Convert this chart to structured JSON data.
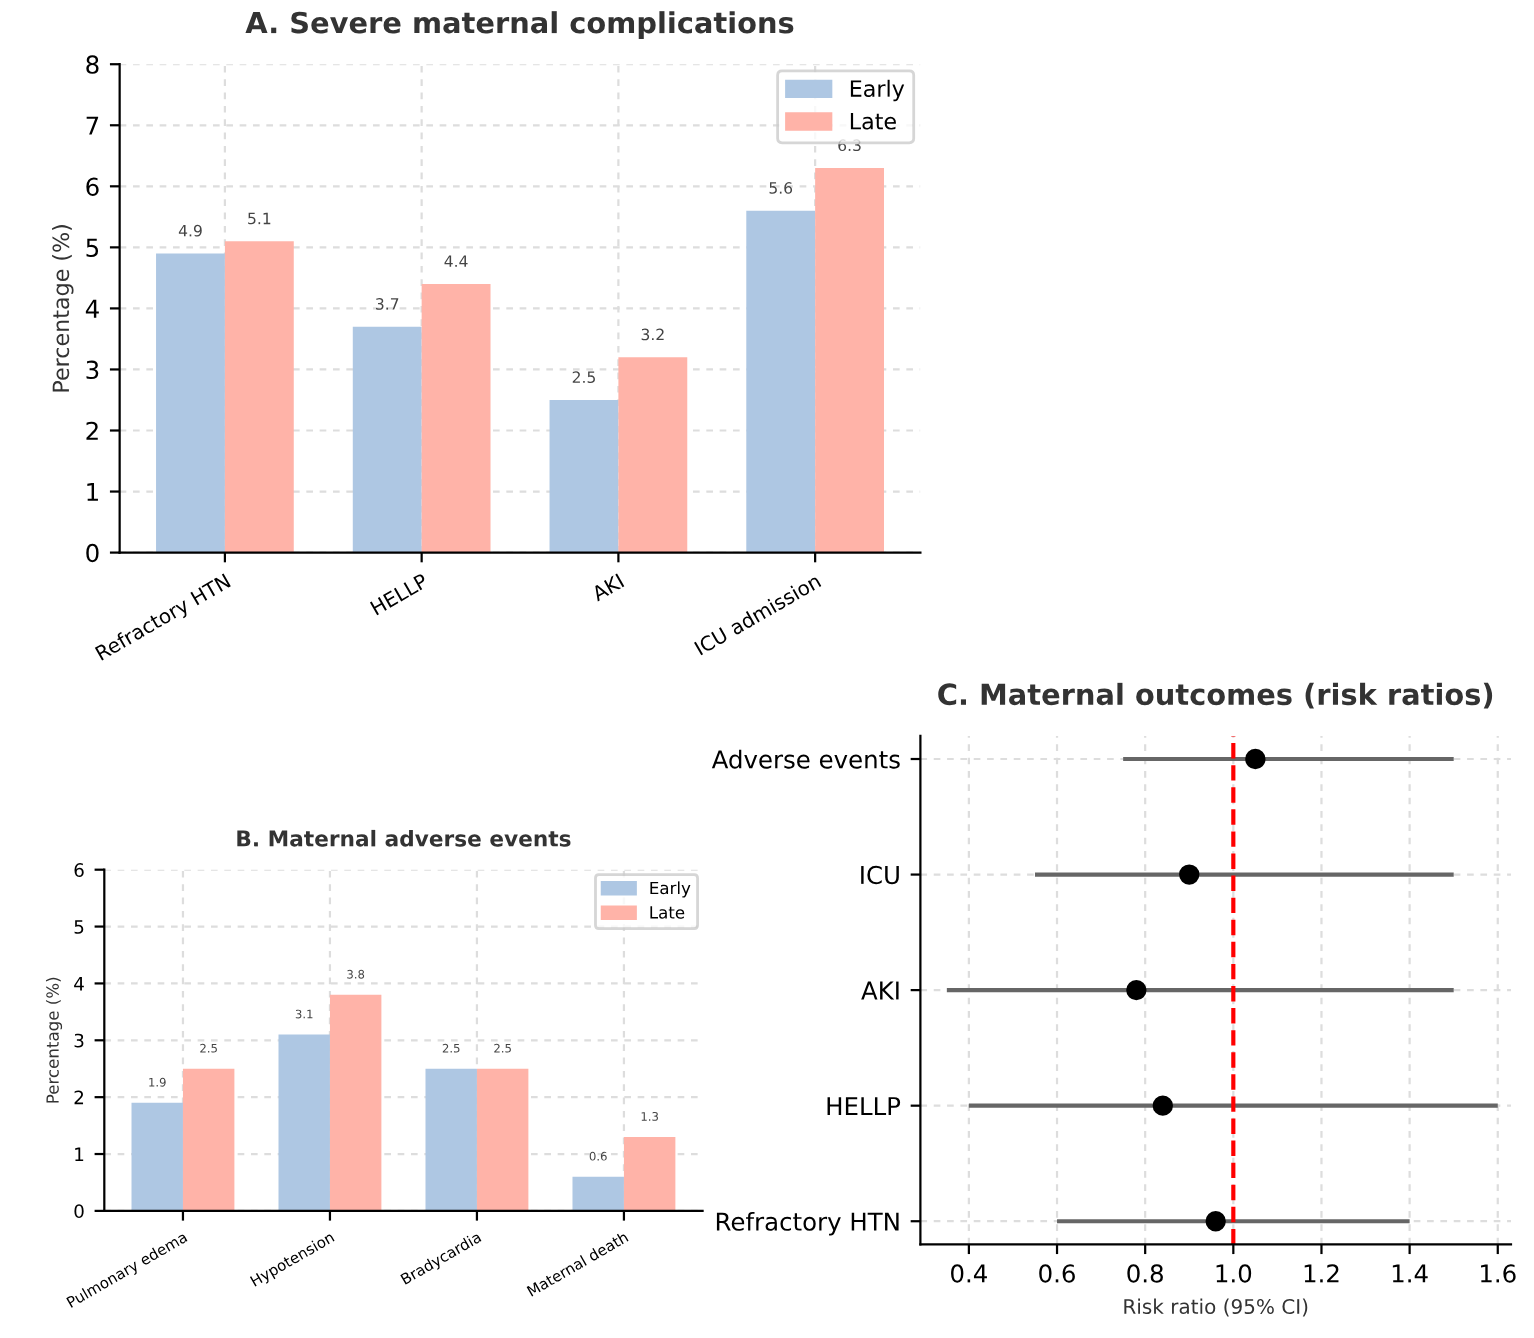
{
  "chart_data": [
    {
      "type": "bar",
      "title": "A. Severe maternal complications",
      "ylabel": "Percentage (%)",
      "categories": [
        "Refractory HTN",
        "HELLP",
        "AKI",
        "ICU admission"
      ],
      "series": [
        {
          "name": "Early",
          "color": "#aec7e3",
          "values": [
            4.9,
            3.7,
            2.5,
            5.6
          ]
        },
        {
          "name": "Late",
          "color": "#ffb3a8",
          "values": [
            5.1,
            4.4,
            3.2,
            6.3
          ]
        }
      ],
      "ylim": [
        0,
        8
      ],
      "yticks": [
        0,
        1,
        2,
        3,
        4,
        5,
        6,
        7,
        8
      ],
      "grid": true,
      "legend": "top right",
      "data_labels": true
    },
    {
      "type": "bar",
      "title": "B. Maternal adverse events",
      "ylabel": "Percentage (%)",
      "categories": [
        "Pulmonary edema",
        "Hypotension",
        "Bradycardia",
        "Maternal death"
      ],
      "series": [
        {
          "name": "Early",
          "color": "#aec7e3",
          "values": [
            1.9,
            3.1,
            2.5,
            0.6
          ]
        },
        {
          "name": "Late",
          "color": "#ffb3a8",
          "values": [
            2.5,
            3.8,
            2.5,
            1.3
          ]
        }
      ],
      "ylim": [
        0,
        6
      ],
      "yticks": [
        0,
        1,
        2,
        3,
        4,
        5,
        6
      ],
      "grid": true,
      "legend": "top right",
      "data_labels": true
    },
    {
      "type": "scatter",
      "title": "C. Maternal outcomes (risk ratios)",
      "xlabel": "Risk ratio (95% CI)",
      "orientation": "horizontal",
      "categories": [
        "Adverse events",
        "ICU",
        "AKI",
        "HELLP",
        "Refractory HTN"
      ],
      "series": [
        {
          "color": "#000000",
          "values": [
            1.05,
            0.9,
            0.78,
            0.84,
            0.96
          ],
          "errors": [
            [
              0.75,
              1.5
            ],
            [
              0.55,
              1.5
            ],
            [
              0.35,
              1.5
            ],
            [
              0.4,
              1.6
            ],
            [
              0.6,
              1.4
            ]
          ]
        }
      ],
      "xlim": [
        0.29,
        1.63
      ],
      "xticks": [
        0.4,
        0.6,
        0.8,
        {
          "value": 1.0,
          "label": "1.0"
        },
        1.2,
        1.4,
        1.6
      ],
      "grid": true,
      "marker": "circle",
      "ref_lines": [
        {
          "axis": "x",
          "value": 1.0,
          "color": "#ff0000",
          "line_style": "dashed"
        }
      ]
    }
  ]
}
